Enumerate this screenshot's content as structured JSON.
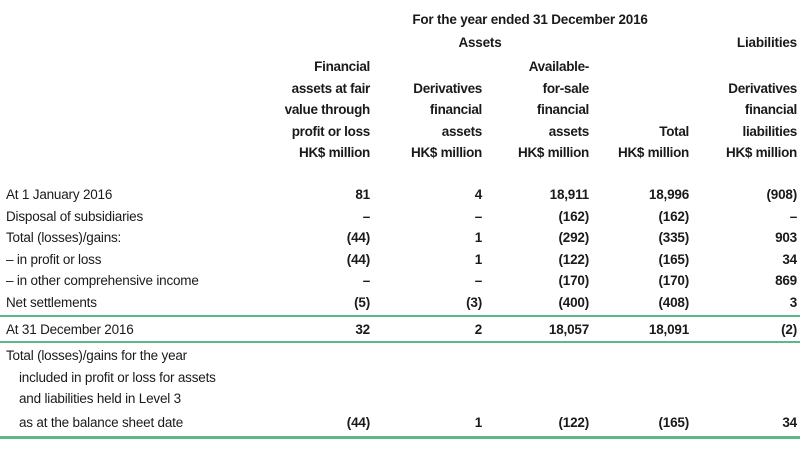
{
  "header": {
    "period": "For the year ended 31 December 2016",
    "assets": "Assets",
    "liabilities": "Liabilities"
  },
  "columns": [
    {
      "lines": [
        "Financial",
        "assets at fair",
        "value through",
        "profit or loss",
        "HK$ million"
      ]
    },
    {
      "lines": [
        "Derivatives",
        "financial",
        "assets",
        "HK$ million"
      ]
    },
    {
      "lines": [
        "Available-",
        "for-sale",
        "financial",
        "assets",
        "HK$ million"
      ]
    },
    {
      "lines": [
        "Total",
        "HK$ million"
      ]
    },
    {
      "lines": [
        "Derivatives",
        "financial",
        "liabilities",
        "HK$ million"
      ]
    }
  ],
  "rows": [
    {
      "label": "At 1 January 2016",
      "values": [
        "81",
        "4",
        "18,911",
        "18,996",
        "(908)"
      ]
    },
    {
      "label": "Disposal of subsidiaries",
      "values": [
        "–",
        "–",
        "(162)",
        "(162)",
        "–"
      ]
    },
    {
      "label": "Total (losses)/gains:",
      "values": [
        "(44)",
        "1",
        "(292)",
        "(335)",
        "903"
      ]
    },
    {
      "label": "– in profit or loss",
      "values": [
        "(44)",
        "1",
        "(122)",
        "(165)",
        "34"
      ]
    },
    {
      "label": "– in other comprehensive income",
      "values": [
        "–",
        "–",
        "(170)",
        "(170)",
        "869"
      ]
    },
    {
      "label": "Net settlements",
      "values": [
        "(5)",
        "(3)",
        "(400)",
        "(408)",
        "3"
      ]
    }
  ],
  "closing": {
    "label": "At 31 December 2016",
    "values": [
      "32",
      "2",
      "18,057",
      "18,091",
      "(2)"
    ]
  },
  "note": {
    "lines": [
      "Total (losses)/gains for the year",
      "included in profit or loss for assets",
      "and liabilities held in Level 3",
      "as at the balance sheet date"
    ],
    "values": [
      "(44)",
      "1",
      "(122)",
      "(165)",
      "34"
    ]
  },
  "colors": {
    "rule": "#5ab88a",
    "text": "#1a1a1a"
  }
}
